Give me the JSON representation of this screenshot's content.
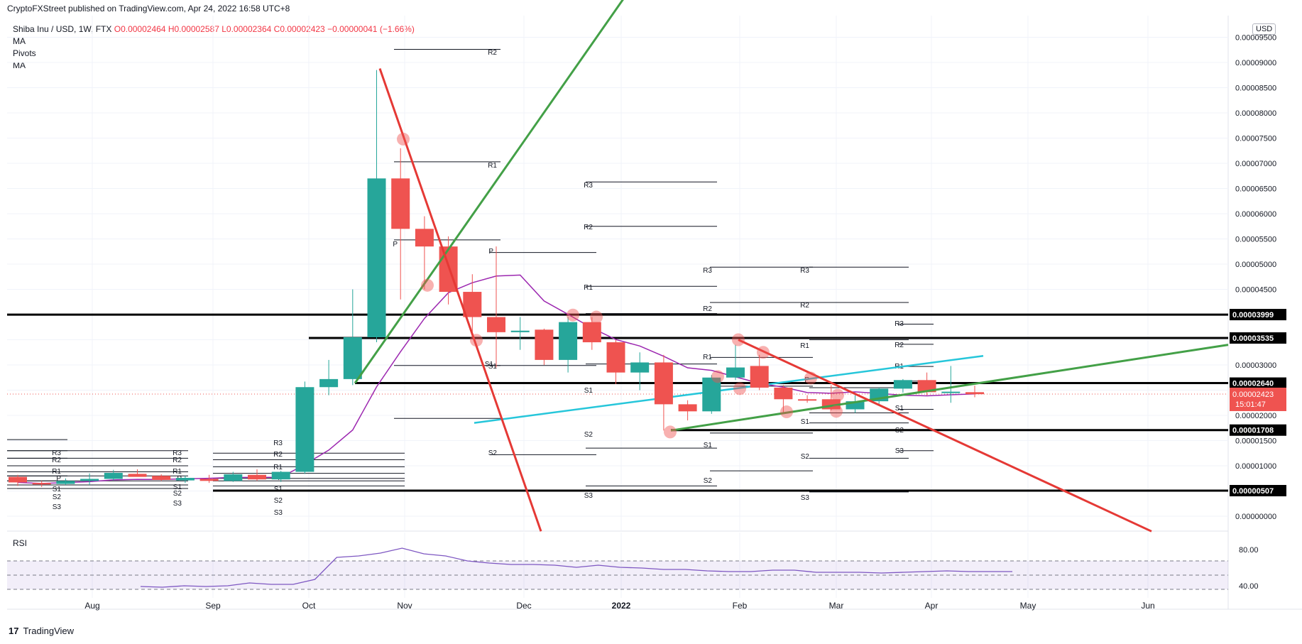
{
  "header": {
    "publisher": "CryptoFXStreet published on TradingView.com, Apr 24, 2022 16:58 UTC+8"
  },
  "legend": {
    "symbol": "Shiba Inu / USD, 1W, FTX",
    "o": "O0.00002464",
    "h": "H0.00002587",
    "l": "L0.00002364",
    "c": "C0.00002423",
    "change": "−0.00000041 (−1.66%)",
    "indicators": [
      "MA",
      "Pivots",
      "MA"
    ]
  },
  "currency": "USD",
  "rsi_label": "RSI",
  "brand": "TradingView",
  "colors": {
    "up": "#26a69a",
    "down": "#ef5350",
    "ma_purple": "#9c27b0",
    "ma_cyan": "#26c6da",
    "trend_green": "#43a047",
    "trend_red": "#e53935"
  },
  "chart_data": {
    "type": "candlestick",
    "x_ticks": [
      "Aug",
      "Sep",
      "Oct",
      "Nov",
      "Dec",
      "2022",
      "Feb",
      "Mar",
      "Apr",
      "May",
      "Jun"
    ],
    "y_ticks": [
      "0.00009500",
      "0.00009000",
      "0.00008500",
      "0.00008000",
      "0.00007500",
      "0.00007000",
      "0.00006500",
      "0.00006000",
      "0.00005500",
      "0.00005000",
      "0.00004500",
      "0.00004000",
      "0.00003500",
      "0.00003000",
      "0.00002500",
      "0.00002000",
      "0.00001500",
      "0.00001000",
      "0.00000500",
      "0.00000000"
    ],
    "ylim": [
      -1e-07,
      9.7e-05
    ],
    "rsi_ticks": [
      "80.00",
      "40.00"
    ],
    "current_price": "0.00002423",
    "countdown": "15:01:47",
    "levels": [
      {
        "value": 3.999e-05,
        "label": "0.00003999"
      },
      {
        "value": 3.535e-05,
        "label": "0.00003535"
      },
      {
        "value": 2.64e-05,
        "label": "0.00002640"
      },
      {
        "value": 1.708e-05,
        "label": "0.00001708"
      },
      {
        "value": 5.07e-06,
        "label": "0.00000507"
      }
    ],
    "candles": [
      {
        "w": 0,
        "o": 7.8e-06,
        "h": 8.2e-06,
        "l": 6e-06,
        "c": 6.7e-06
      },
      {
        "w": 1,
        "o": 6.6e-06,
        "h": 7e-06,
        "l": 5.8e-06,
        "c": 6.3e-06
      },
      {
        "w": 2,
        "o": 6.4e-06,
        "h": 7.5e-06,
        "l": 6.2e-06,
        "c": 7e-06
      },
      {
        "w": 3,
        "o": 7e-06,
        "h": 8.5e-06,
        "l": 6.2e-06,
        "c": 7.4e-06
      },
      {
        "w": 4,
        "o": 7.4e-06,
        "h": 9.2e-06,
        "l": 7.1e-06,
        "c": 8.6e-06
      },
      {
        "w": 5,
        "o": 8.4e-06,
        "h": 9.3e-06,
        "l": 8e-06,
        "c": 7.8e-06
      },
      {
        "w": 6,
        "o": 8e-06,
        "h": 8.3e-06,
        "l": 7e-06,
        "c": 7.2e-06
      },
      {
        "w": 7,
        "o": 7.1e-06,
        "h": 8e-06,
        "l": 6.6e-06,
        "c": 7.6e-06
      },
      {
        "w": 8,
        "o": 7.4e-06,
        "h": 8.2e-06,
        "l": 6.6e-06,
        "c": 7e-06
      },
      {
        "w": 9,
        "o": 7e-06,
        "h": 8.8e-06,
        "l": 6.8e-06,
        "c": 8.3e-06
      },
      {
        "w": 10,
        "o": 8.2e-06,
        "h": 9.3e-06,
        "l": 7e-06,
        "c": 7.3e-06
      },
      {
        "w": 11,
        "o": 7.3e-06,
        "h": 9e-06,
        "l": 6.8e-06,
        "c": 8.8e-06
      },
      {
        "w": 12,
        "o": 8.8e-06,
        "h": 2.67e-05,
        "l": 8.4e-06,
        "c": 2.56e-05
      },
      {
        "w": 13,
        "o": 2.56e-05,
        "h": 3.1e-05,
        "l": 2.4e-05,
        "c": 2.72e-05
      },
      {
        "w": 14,
        "o": 2.72e-05,
        "h": 4.5e-05,
        "l": 2.6e-05,
        "c": 3.55e-05
      },
      {
        "w": 15,
        "o": 3.55e-05,
        "h": 8.85e-05,
        "l": 3.45e-05,
        "c": 6.7e-05
      },
      {
        "w": 16,
        "o": 6.7e-05,
        "h": 7.3e-05,
        "l": 4.3e-05,
        "c": 5.7e-05
      },
      {
        "w": 17,
        "o": 5.7e-05,
        "h": 5.95e-05,
        "l": 4.5e-05,
        "c": 5.35e-05
      },
      {
        "w": 18,
        "o": 5.35e-05,
        "h": 5.55e-05,
        "l": 4.2e-05,
        "c": 4.45e-05
      },
      {
        "w": 19,
        "o": 4.45e-05,
        "h": 4.8e-05,
        "l": 3.6e-05,
        "c": 3.95e-05
      },
      {
        "w": 20,
        "o": 3.95e-05,
        "h": 5.35e-05,
        "l": 2.95e-05,
        "c": 3.65e-05
      },
      {
        "w": 21,
        "o": 3.65e-05,
        "h": 3.95e-05,
        "l": 3.3e-05,
        "c": 3.68e-05
      },
      {
        "w": 22,
        "o": 3.7e-05,
        "h": 3.72e-05,
        "l": 3e-05,
        "c": 3.1e-05
      },
      {
        "w": 23,
        "o": 3.1e-05,
        "h": 3.95e-05,
        "l": 2.85e-05,
        "c": 3.85e-05
      },
      {
        "w": 24,
        "o": 3.85e-05,
        "h": 3.95e-05,
        "l": 3.3e-05,
        "c": 3.45e-05
      },
      {
        "w": 25,
        "o": 3.45e-05,
        "h": 3.5e-05,
        "l": 2.62e-05,
        "c": 2.85e-05
      },
      {
        "w": 26,
        "o": 2.85e-05,
        "h": 3.25e-05,
        "l": 2.5e-05,
        "c": 3.05e-05
      },
      {
        "w": 27,
        "o": 3.05e-05,
        "h": 3.2e-05,
        "l": 1.7e-05,
        "c": 2.22e-05
      },
      {
        "w": 28,
        "o": 2.22e-05,
        "h": 2.3e-05,
        "l": 1.9e-05,
        "c": 2.08e-05
      },
      {
        "w": 29,
        "o": 2.08e-05,
        "h": 2.8e-05,
        "l": 2.03e-05,
        "c": 2.75e-05
      },
      {
        "w": 30,
        "o": 2.75e-05,
        "h": 3.4e-05,
        "l": 2.7e-05,
        "c": 2.95e-05
      },
      {
        "w": 31,
        "o": 2.98e-05,
        "h": 3.2e-05,
        "l": 2.5e-05,
        "c": 2.55e-05
      },
      {
        "w": 32,
        "o": 2.55e-05,
        "h": 2.6e-05,
        "l": 2.05e-05,
        "c": 2.32e-05
      },
      {
        "w": 33,
        "o": 2.32e-05,
        "h": 2.4e-05,
        "l": 2.25e-05,
        "c": 2.3e-05
      },
      {
        "w": 34,
        "o": 2.32e-05,
        "h": 2.6e-05,
        "l": 2.1e-05,
        "c": 2.12e-05
      },
      {
        "w": 35,
        "o": 2.12e-05,
        "h": 2.4e-05,
        "l": 2.05e-05,
        "c": 2.28e-05
      },
      {
        "w": 36,
        "o": 2.28e-05,
        "h": 2.55e-05,
        "l": 2.2e-05,
        "c": 2.53e-05
      },
      {
        "w": 37,
        "o": 2.53e-05,
        "h": 2.72e-05,
        "l": 2.45e-05,
        "c": 2.7e-05
      },
      {
        "w": 38,
        "o": 2.7e-05,
        "h": 2.85e-05,
        "l": 2.4e-05,
        "c": 2.46e-05
      },
      {
        "w": 39,
        "o": 2.46e-05,
        "h": 2.98e-05,
        "l": 2.25e-05,
        "c": 2.47e-05
      },
      {
        "w": 40,
        "o": 2.46e-05,
        "h": 2.59e-05,
        "l": 2.36e-05,
        "c": 2.42e-05
      }
    ],
    "pivot_labels": [
      "R3",
      "R2",
      "R1",
      "P",
      "S1",
      "S2",
      "S3"
    ],
    "rsi_series": [
      34,
      33,
      35,
      34,
      35,
      39,
      37,
      37,
      44,
      75,
      77,
      81,
      88,
      80,
      77,
      70,
      67,
      65,
      65,
      64,
      61,
      64,
      61,
      60,
      58,
      58,
      56,
      55,
      55,
      57,
      57,
      54,
      54,
      54,
      53,
      54,
      55,
      56,
      55,
      55,
      55
    ]
  }
}
